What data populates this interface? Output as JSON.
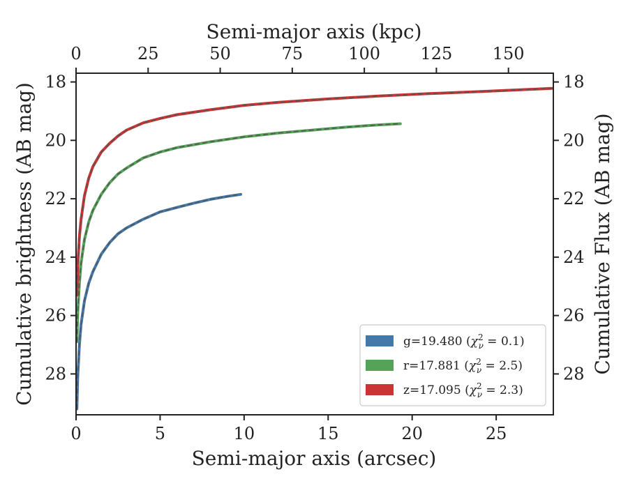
{
  "chart_data": {
    "type": "line",
    "xlabel_bottom": "Semi-major axis (arcsec)",
    "xlabel_top": "Semi-major axis (kpc)",
    "ylabel_left": "Cumulative brightness (AB mag)",
    "ylabel_right": "Cumulative Flux (AB mag)",
    "xlim": [
      0,
      28.4
    ],
    "ylim": [
      29.4,
      17.7
    ],
    "y_inverted": true,
    "x_ticks": [
      0,
      5,
      10,
      15,
      20,
      25
    ],
    "x_top_ticks": [
      0,
      25,
      50,
      75,
      100,
      125,
      150
    ],
    "kpc_per_arcsec": 5.83,
    "y_ticks": [
      18,
      20,
      22,
      24,
      26,
      28
    ],
    "grid": false,
    "legend_position": "lower-right",
    "series": [
      {
        "name": "g",
        "legend": "g=19.480 (χ²ᵥ = 0.1)",
        "legend_main": "g=19.480 (",
        "legend_chi": "χ",
        "legend_sup": "2",
        "legend_sub": "ν",
        "legend_val": " = 0.1)",
        "color": "#4477aa",
        "x": [
          0.05,
          0.1,
          0.2,
          0.3,
          0.5,
          0.75,
          1.0,
          1.5,
          2.0,
          2.5,
          3.0,
          4.0,
          5.0,
          6.0,
          7.0,
          8.0,
          9.0,
          9.8
        ],
        "y": [
          29.2,
          28.1,
          27.0,
          26.3,
          25.5,
          24.9,
          24.5,
          23.9,
          23.5,
          23.2,
          23.0,
          22.7,
          22.45,
          22.3,
          22.15,
          22.02,
          21.92,
          21.85
        ]
      },
      {
        "name": "r",
        "legend": "r=17.881 (χ²ᵥ = 2.5)",
        "legend_main": "r=17.881 (",
        "legend_chi": "χ",
        "legend_sup": "2",
        "legend_sub": "ν",
        "legend_val": " = 2.5)",
        "color": "#55a357",
        "x": [
          0.05,
          0.1,
          0.2,
          0.3,
          0.5,
          0.75,
          1.0,
          1.5,
          2.0,
          2.5,
          3.0,
          4.0,
          5.0,
          6.0,
          8.0,
          10.0,
          12.0,
          14.0,
          16.0,
          18.0,
          19.3
        ],
        "y": [
          26.9,
          25.9,
          24.9,
          24.2,
          23.4,
          22.8,
          22.4,
          21.85,
          21.45,
          21.15,
          20.95,
          20.6,
          20.4,
          20.25,
          20.05,
          19.88,
          19.75,
          19.65,
          19.55,
          19.47,
          19.43
        ]
      },
      {
        "name": "z",
        "legend": "z=17.095 (χ²ᵥ = 2.3)",
        "legend_main": "z=17.095 (",
        "legend_chi": "χ",
        "legend_sup": "2",
        "legend_sub": "ν",
        "legend_val": " = 2.3)",
        "color": "#cc3333",
        "x": [
          0.05,
          0.1,
          0.2,
          0.3,
          0.5,
          0.75,
          1.0,
          1.5,
          2.0,
          2.5,
          3.0,
          4.0,
          5.0,
          6.0,
          8.0,
          10.0,
          12.0,
          15.0,
          18.0,
          21.0,
          24.0,
          26.0,
          28.3
        ],
        "y": [
          25.3,
          24.3,
          23.3,
          22.7,
          21.9,
          21.3,
          20.9,
          20.4,
          20.1,
          19.85,
          19.65,
          19.4,
          19.25,
          19.12,
          18.95,
          18.8,
          18.7,
          18.58,
          18.48,
          18.4,
          18.33,
          18.28,
          18.22
        ]
      }
    ]
  }
}
